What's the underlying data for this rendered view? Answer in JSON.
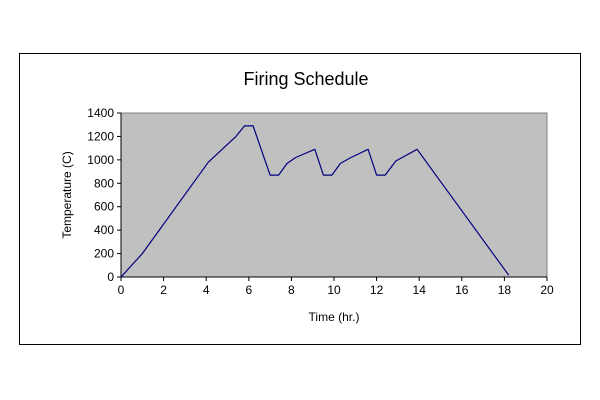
{
  "chart_data": {
    "type": "line",
    "title": "Firing Schedule",
    "xlabel": "Time (hr.)",
    "ylabel": "Temperature (C)",
    "xlim": [
      0,
      20
    ],
    "ylim": [
      0,
      1400
    ],
    "xticks": [
      0,
      2,
      4,
      6,
      8,
      10,
      12,
      14,
      16,
      18,
      20
    ],
    "yticks": [
      0,
      200,
      400,
      600,
      800,
      1000,
      1200,
      1400
    ],
    "grid": false,
    "legend": "none",
    "plot_background": "#c0c0c0",
    "series": [
      {
        "color": "#000080",
        "x": [
          0,
          1,
          4.1,
          5.4,
          5.8,
          6.2,
          7,
          7.4,
          7.8,
          8.2,
          9.1,
          9.5,
          9.9,
          10.3,
          10.8,
          11.6,
          12,
          12.4,
          12.9,
          13.9,
          18.2
        ],
        "y": [
          0,
          200,
          980,
          1200,
          1290,
          1290,
          870,
          870,
          970,
          1020,
          1090,
          870,
          870,
          970,
          1020,
          1090,
          870,
          870,
          990,
          1090,
          15
        ]
      }
    ]
  }
}
